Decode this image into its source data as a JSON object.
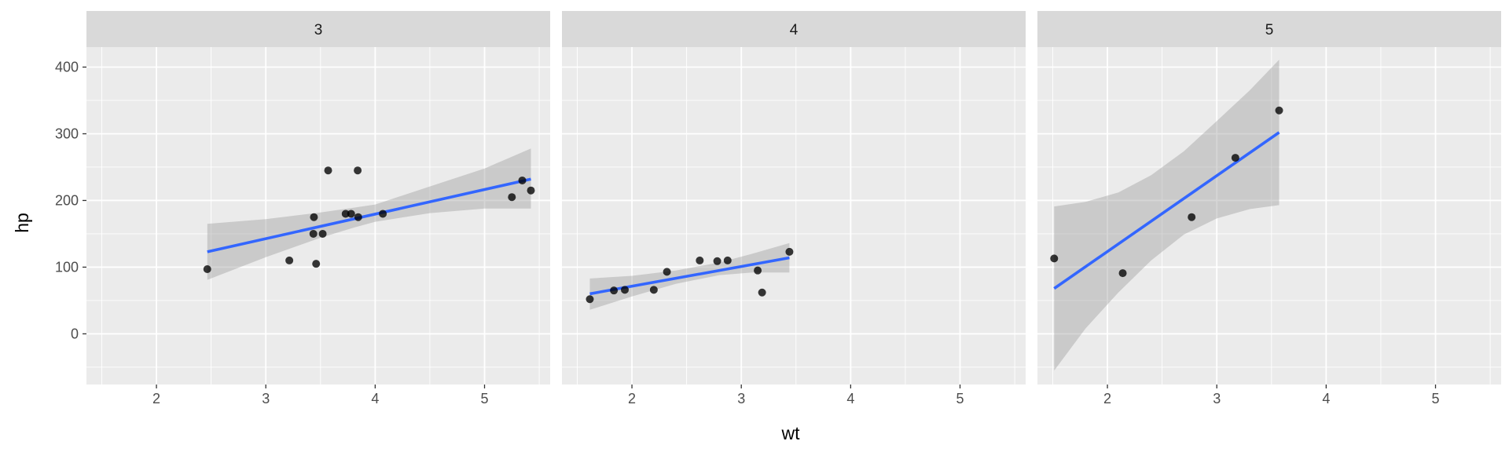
{
  "chart_data": {
    "type": "scatter",
    "facet_variable": "gear",
    "xlabel": "wt",
    "ylabel": "hp",
    "xlim": [
      1.36,
      5.6
    ],
    "ylim": [
      -76,
      430
    ],
    "x_ticks": [
      2,
      3,
      4,
      5
    ],
    "y_ticks": [
      0,
      100,
      200,
      300,
      400
    ],
    "x_tick_labels": [
      "2",
      "3",
      "4",
      "5"
    ],
    "y_tick_labels": [
      "0",
      "100",
      "200",
      "300",
      "400"
    ],
    "grid": true,
    "legend": "none",
    "colors": {
      "panel_background": "#ebebeb",
      "strip_background": "#d9d9d9",
      "grid_line": "#ffffff",
      "point": "#000000",
      "smooth_line": "#3366ff",
      "confidence_band": "#999999"
    },
    "panels": [
      {
        "strip_label": "3",
        "points": [
          {
            "x": 2.465,
            "y": 97
          },
          {
            "x": 3.215,
            "y": 110
          },
          {
            "x": 3.44,
            "y": 175
          },
          {
            "x": 3.46,
            "y": 105
          },
          {
            "x": 3.57,
            "y": 245
          },
          {
            "x": 3.73,
            "y": 180
          },
          {
            "x": 3.78,
            "y": 180
          },
          {
            "x": 3.84,
            "y": 245
          },
          {
            "x": 3.845,
            "y": 175
          },
          {
            "x": 4.07,
            "y": 180
          },
          {
            "x": 5.25,
            "y": 205
          },
          {
            "x": 5.345,
            "y": 230
          },
          {
            "x": 5.424,
            "y": 215
          },
          {
            "x": 3.435,
            "y": 150
          },
          {
            "x": 3.52,
            "y": 150
          }
        ],
        "fit": {
          "x": [
            2.465,
            5.424
          ],
          "y": [
            123,
            232
          ]
        },
        "band": {
          "x": [
            2.465,
            3.0,
            3.5,
            3.8,
            4.0,
            4.5,
            5.0,
            5.424
          ],
          "lower": [
            81,
            115,
            144,
            159,
            168,
            181,
            188,
            188
          ],
          "upper": [
            165,
            172,
            182,
            189,
            194,
            221,
            248,
            278
          ]
        }
      },
      {
        "strip_label": "4",
        "points": [
          {
            "x": 1.615,
            "y": 52
          },
          {
            "x": 1.835,
            "y": 65
          },
          {
            "x": 1.935,
            "y": 66
          },
          {
            "x": 2.2,
            "y": 66
          },
          {
            "x": 2.32,
            "y": 93
          },
          {
            "x": 2.62,
            "y": 110
          },
          {
            "x": 2.78,
            "y": 109
          },
          {
            "x": 2.875,
            "y": 110
          },
          {
            "x": 3.15,
            "y": 95
          },
          {
            "x": 3.19,
            "y": 62
          },
          {
            "x": 3.44,
            "y": 123
          }
        ],
        "fit": {
          "x": [
            1.615,
            3.44
          ],
          "y": [
            60,
            114
          ]
        },
        "band": {
          "x": [
            1.615,
            2.0,
            2.4,
            2.8,
            3.1,
            3.44
          ],
          "lower": [
            36,
            56,
            75,
            88,
            92,
            92
          ],
          "upper": [
            83,
            87,
            95,
            107,
            120,
            136
          ]
        }
      },
      {
        "strip_label": "5",
        "points": [
          {
            "x": 1.513,
            "y": 113
          },
          {
            "x": 2.14,
            "y": 91
          },
          {
            "x": 2.77,
            "y": 175
          },
          {
            "x": 3.17,
            "y": 264
          },
          {
            "x": 3.57,
            "y": 335
          }
        ],
        "fit": {
          "x": [
            1.513,
            3.57
          ],
          "y": [
            68,
            302
          ]
        },
        "band": {
          "x": [
            1.513,
            1.8,
            2.1,
            2.4,
            2.7,
            3.0,
            3.3,
            3.57
          ],
          "lower": [
            -55,
            8,
            62,
            110,
            149,
            173,
            187,
            193
          ],
          "upper": [
            191,
            198,
            212,
            238,
            274,
            319,
            365,
            411
          ]
        }
      }
    ]
  }
}
